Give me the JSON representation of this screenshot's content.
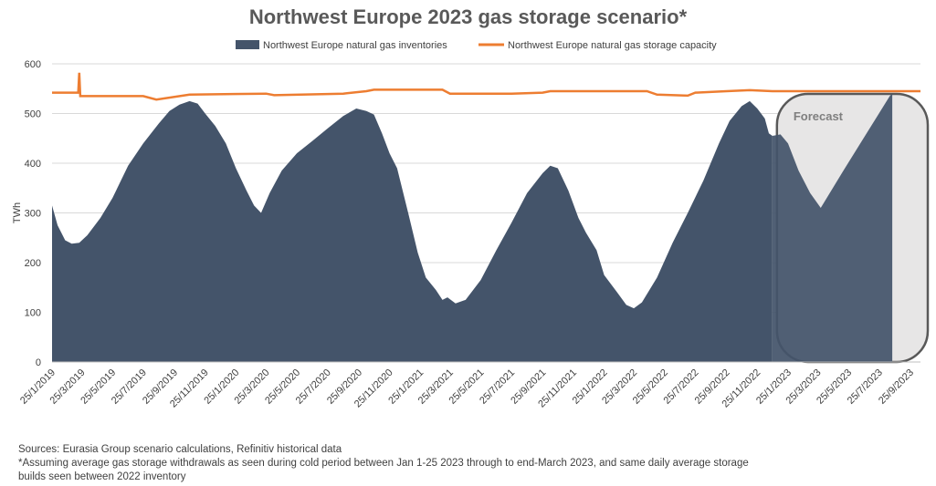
{
  "chart_data": {
    "type": "area",
    "title": "Northwest Europe 2023 gas storage scenario*",
    "ylabel": "TWh",
    "xlabel": "",
    "ylim": [
      0,
      600
    ],
    "yticks": [
      0,
      100,
      200,
      300,
      400,
      500,
      600
    ],
    "x_range": [
      "2019-01-25",
      "2023-10-15"
    ],
    "grid": "horizontal",
    "legend": "top-center",
    "x_tick_labels": [
      "25/1/2019",
      "25/3/2019",
      "25/5/2019",
      "25/7/2019",
      "25/9/2019",
      "25/11/2019",
      "25/1/2020",
      "25/3/2020",
      "25/5/2020",
      "25/7/2020",
      "25/9/2020",
      "25/11/2020",
      "25/1/2021",
      "25/3/2021",
      "25/5/2021",
      "25/7/2021",
      "25/9/2021",
      "25/11/2021",
      "25/1/2022",
      "25/3/2022",
      "25/5/2022",
      "25/7/2022",
      "25/9/2022",
      "25/11/2022",
      "25/1/2023",
      "25/3/2023",
      "25/5/2023",
      "25/7/2023",
      "25/9/2023"
    ],
    "forecast_label": "Forecast",
    "forecast_start": "2022-12-25",
    "forecast_end": "2023-10-15",
    "colors": {
      "inventories": "#44546A",
      "capacity": "#ED7D31",
      "forecast_shade": "#E7E6E6"
    },
    "series": [
      {
        "name": "Northwest Europe natural gas inventories",
        "type": "area",
        "points": [
          [
            "2019-01-25",
            315
          ],
          [
            "2019-02-05",
            275
          ],
          [
            "2019-02-20",
            245
          ],
          [
            "2019-03-05",
            238
          ],
          [
            "2019-03-20",
            240
          ],
          [
            "2019-04-05",
            255
          ],
          [
            "2019-05-01",
            290
          ],
          [
            "2019-05-25",
            330
          ],
          [
            "2019-06-25",
            395
          ],
          [
            "2019-07-25",
            440
          ],
          [
            "2019-08-25",
            480
          ],
          [
            "2019-09-15",
            505
          ],
          [
            "2019-10-05",
            518
          ],
          [
            "2019-10-25",
            525
          ],
          [
            "2019-11-10",
            520
          ],
          [
            "2019-11-25",
            500
          ],
          [
            "2019-12-15",
            475
          ],
          [
            "2020-01-05",
            440
          ],
          [
            "2020-01-25",
            390
          ],
          [
            "2020-02-15",
            345
          ],
          [
            "2020-03-01",
            315
          ],
          [
            "2020-03-15",
            300
          ],
          [
            "2020-04-01",
            340
          ],
          [
            "2020-04-25",
            385
          ],
          [
            "2020-05-25",
            420
          ],
          [
            "2020-06-25",
            445
          ],
          [
            "2020-07-25",
            470
          ],
          [
            "2020-08-25",
            495
          ],
          [
            "2020-09-20",
            510
          ],
          [
            "2020-10-10",
            505
          ],
          [
            "2020-10-25",
            498
          ],
          [
            "2020-11-10",
            460
          ],
          [
            "2020-11-25",
            420
          ],
          [
            "2020-12-10",
            390
          ],
          [
            "2021-01-01",
            300
          ],
          [
            "2021-01-20",
            220
          ],
          [
            "2021-02-05",
            170
          ],
          [
            "2021-02-25",
            145
          ],
          [
            "2021-03-10",
            125
          ],
          [
            "2021-03-20",
            130
          ],
          [
            "2021-04-05",
            118
          ],
          [
            "2021-04-25",
            125
          ],
          [
            "2021-05-25",
            165
          ],
          [
            "2021-06-25",
            225
          ],
          [
            "2021-07-25",
            280
          ],
          [
            "2021-08-25",
            340
          ],
          [
            "2021-09-25",
            380
          ],
          [
            "2021-10-10",
            395
          ],
          [
            "2021-10-25",
            390
          ],
          [
            "2021-11-15",
            345
          ],
          [
            "2021-12-05",
            290
          ],
          [
            "2021-12-20",
            260
          ],
          [
            "2022-01-10",
            225
          ],
          [
            "2022-01-25",
            175
          ],
          [
            "2022-02-20",
            140
          ],
          [
            "2022-03-10",
            115
          ],
          [
            "2022-03-25",
            108
          ],
          [
            "2022-04-10",
            120
          ],
          [
            "2022-05-10",
            170
          ],
          [
            "2022-06-10",
            240
          ],
          [
            "2022-07-10",
            300
          ],
          [
            "2022-08-10",
            365
          ],
          [
            "2022-09-10",
            440
          ],
          [
            "2022-10-01",
            485
          ],
          [
            "2022-10-25",
            515
          ],
          [
            "2022-11-10",
            525
          ],
          [
            "2022-11-25",
            510
          ],
          [
            "2022-12-10",
            490
          ],
          [
            "2022-12-18",
            460
          ],
          [
            "2022-12-25",
            455
          ]
        ]
      },
      {
        "name": "Forecast inventories",
        "type": "area",
        "points": [
          [
            "2022-12-25",
            455
          ],
          [
            "2023-01-10",
            458
          ],
          [
            "2023-01-25",
            440
          ],
          [
            "2023-02-15",
            385
          ],
          [
            "2023-03-10",
            340
          ],
          [
            "2023-03-31",
            310
          ],
          [
            "2023-05-15",
            385
          ],
          [
            "2023-06-30",
            460
          ],
          [
            "2023-08-15",
            535
          ],
          [
            "2023-08-20",
            540
          ]
        ]
      },
      {
        "name": "Northwest Europe natural gas storage capacity",
        "type": "line",
        "points": [
          [
            "2019-01-25",
            542
          ],
          [
            "2019-03-18",
            542
          ],
          [
            "2019-03-20",
            582
          ],
          [
            "2019-03-22",
            535
          ],
          [
            "2019-07-25",
            535
          ],
          [
            "2019-08-20",
            528
          ],
          [
            "2019-10-25",
            538
          ],
          [
            "2020-03-25",
            540
          ],
          [
            "2020-04-10",
            537
          ],
          [
            "2020-08-25",
            540
          ],
          [
            "2020-10-10",
            545
          ],
          [
            "2020-10-25",
            548
          ],
          [
            "2021-03-10",
            548
          ],
          [
            "2021-03-25",
            540
          ],
          [
            "2021-07-25",
            540
          ],
          [
            "2021-09-25",
            542
          ],
          [
            "2021-10-10",
            545
          ],
          [
            "2022-04-20",
            545
          ],
          [
            "2022-05-10",
            538
          ],
          [
            "2022-07-10",
            536
          ],
          [
            "2022-07-25",
            542
          ],
          [
            "2022-09-25",
            545
          ],
          [
            "2022-11-10",
            547
          ],
          [
            "2022-12-25",
            545
          ],
          [
            "2023-10-15",
            545
          ]
        ]
      }
    ]
  },
  "notes": {
    "source": "Sources: Eurasia Group scenario calculations, Refinitiv historical data",
    "assumption": "*Assuming average gas storage withdrawals as seen during cold period between Jan 1-25 2023 through to end-March 2023, and same daily average storage builds seen between 2022 inventory"
  }
}
